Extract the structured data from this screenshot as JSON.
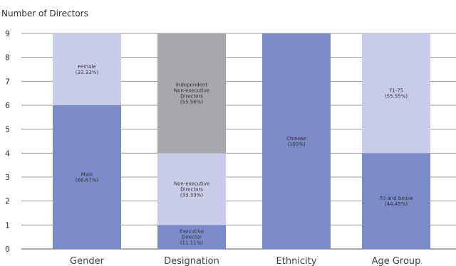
{
  "chart_data": {
    "type": "bar",
    "stacked": true,
    "ylabel": "Number of Directors",
    "ylim": [
      0,
      9
    ],
    "yticks": [
      0,
      1,
      2,
      3,
      4,
      5,
      6,
      7,
      8,
      9
    ],
    "grid": true,
    "categories": [
      "Gender",
      "Designation",
      "Ethnicity",
      "Age Group"
    ],
    "stacks": [
      {
        "category": "Gender",
        "segments": [
          {
            "value": 6,
            "label": [
              "Male",
              "(66.67%)"
            ],
            "color": "#7b8bc9"
          },
          {
            "value": 3,
            "label": [
              "Female",
              "(33.33%)"
            ],
            "color": "#c9cce8"
          }
        ]
      },
      {
        "category": "Designation",
        "segments": [
          {
            "value": 1,
            "label": [
              "Executive",
              "Director",
              "(11.11%)"
            ],
            "color": "#7b8bc9"
          },
          {
            "value": 3,
            "label": [
              "Non-executive",
              "Directors",
              "(33.33%)"
            ],
            "color": "#c9cce8"
          },
          {
            "value": 5,
            "label": [
              "Independent",
              "Non-executive",
              "Directors",
              "(55.56%)"
            ],
            "color": "#a7a8ac"
          }
        ]
      },
      {
        "category": "Ethnicity",
        "segments": [
          {
            "value": 9,
            "label": [
              "Chinese",
              "(100%)"
            ],
            "color": "#7b8bc9"
          }
        ]
      },
      {
        "category": "Age Group",
        "segments": [
          {
            "value": 4,
            "label": [
              "70 and below",
              "(44.45%)"
            ],
            "color": "#7b8bc9"
          },
          {
            "value": 5,
            "label": [
              "71-75",
              "(55.55%)"
            ],
            "color": "#c9cce8"
          }
        ]
      }
    ]
  }
}
